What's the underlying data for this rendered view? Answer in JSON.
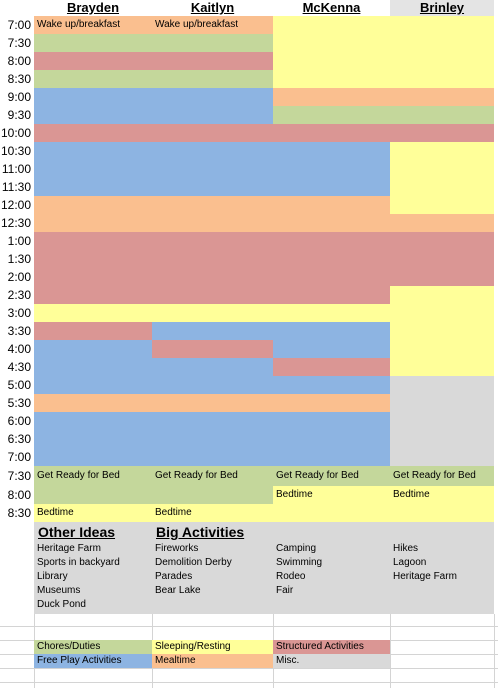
{
  "schedule": {
    "times": [
      "7:00",
      "7:30",
      "8:00",
      "8:30",
      "9:00",
      "9:30",
      "10:00",
      "10:30",
      "11:00",
      "11:30",
      "12:00",
      "12:30",
      "1:00",
      "1:30",
      "2:00",
      "2:30",
      "3:00",
      "3:30",
      "4:00",
      "4:30",
      "5:00",
      "5:30",
      "6:00",
      "6:30",
      "7:00",
      "7:30",
      "8:00",
      "8:30"
    ],
    "columns": [
      {
        "name": "Brayden",
        "cells": [
          "Wake up/breakfast",
          null,
          null,
          null,
          null,
          null,
          null,
          null,
          null,
          null,
          null,
          null,
          null,
          null,
          null,
          null,
          null,
          null,
          null,
          null,
          null,
          null,
          null,
          null,
          null,
          "Get Ready for Bed",
          null,
          "Bedtime"
        ]
      },
      {
        "name": "Kaitlyn",
        "cells": [
          "Wake up/breakfast",
          null,
          null,
          null,
          null,
          null,
          null,
          null,
          null,
          null,
          null,
          null,
          null,
          null,
          null,
          null,
          null,
          null,
          null,
          null,
          null,
          null,
          null,
          null,
          null,
          "Get Ready for Bed",
          null,
          "Bedtime"
        ]
      },
      {
        "name": "McKenna",
        "cells": [
          null,
          null,
          null,
          null,
          null,
          null,
          null,
          null,
          null,
          null,
          null,
          null,
          null,
          null,
          null,
          null,
          null,
          null,
          null,
          null,
          null,
          null,
          null,
          null,
          null,
          "Get Ready for Bed",
          "Bedtime",
          null
        ]
      },
      {
        "name": "Brinley",
        "cells": [
          null,
          null,
          null,
          null,
          null,
          null,
          null,
          null,
          null,
          null,
          null,
          null,
          null,
          null,
          null,
          null,
          null,
          null,
          null,
          null,
          null,
          null,
          null,
          null,
          null,
          "Get Ready for Bed",
          "Bedtime",
          null
        ]
      }
    ]
  },
  "ideas": {
    "headings": [
      "Other Ideas",
      "Big Activities"
    ],
    "columns": [
      [
        "Heritage Farm",
        "Sports in backyard",
        "Library",
        "Museums",
        "Duck Pond"
      ],
      [
        "Fireworks",
        "Demolition Derby",
        "Parades",
        "Bear Lake"
      ],
      [
        "Camping",
        "Swimming",
        "Rodeo",
        "Fair"
      ],
      [
        "Hikes",
        "Lagoon",
        "Heritage Farm"
      ]
    ]
  },
  "legend": [
    [
      {
        "label": "Chores/Duties",
        "color": "#c4d79b"
      },
      {
        "label": "Sleeping/Resting",
        "color": "#ffff99"
      },
      {
        "label": "Structured Activities",
        "color": "#da9694"
      }
    ],
    [
      {
        "label": "Free Play Activities",
        "color": "#8db4e2"
      },
      {
        "label": "Mealtime",
        "color": "#fabf8f"
      },
      {
        "label": "Misc.",
        "color": "#d9d9d9"
      }
    ]
  ]
}
